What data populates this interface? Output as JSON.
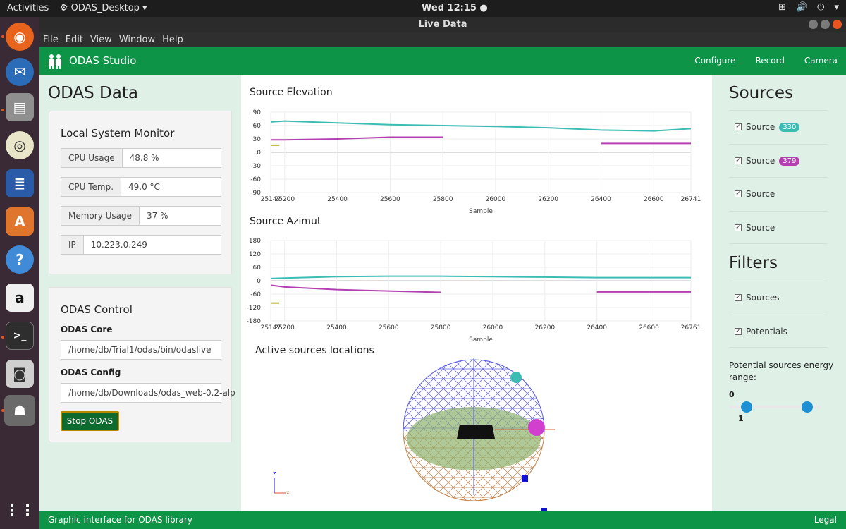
{
  "system": {
    "activities": "Activities",
    "app_name": "ODAS_Desktop",
    "clock": "Wed 12:15",
    "window_title": "Live Data",
    "menu": [
      "File",
      "Edit",
      "View",
      "Window",
      "Help"
    ]
  },
  "app": {
    "brand": "ODAS Studio",
    "nav": [
      "Configure",
      "Record",
      "Camera"
    ],
    "footer_left": "Graphic interface for ODAS library",
    "footer_right": "Legal",
    "accent": "#0e9447"
  },
  "left": {
    "title": "ODAS Data",
    "monitor_title": "Local System Monitor",
    "stats": [
      {
        "key": "CPU Usage",
        "value": "48.8 %"
      },
      {
        "key": "CPU Temp.",
        "value": "49.0 °C"
      },
      {
        "key": "Memory Usage",
        "value": "37 %"
      },
      {
        "key": "IP",
        "value": "10.223.0.249"
      }
    ],
    "control_title": "ODAS Control",
    "core_label": "ODAS Core",
    "core_value": "/home/db/Trial1/odas/bin/odaslive",
    "config_label": "ODAS Config",
    "config_value": "/home/db/Downloads/odas_web-0.2-alp",
    "stop_button": "Stop ODAS"
  },
  "center": {
    "locations_title": "Active sources locations"
  },
  "right": {
    "sources_title": "Sources",
    "sources": [
      {
        "label": "Source",
        "badge": "330",
        "badge_color": "#3bbdb4"
      },
      {
        "label": "Source",
        "badge": "379",
        "badge_color": "#b33fb3"
      },
      {
        "label": "Source",
        "badge": "",
        "badge_color": ""
      },
      {
        "label": "Source",
        "badge": "",
        "badge_color": ""
      }
    ],
    "filters_title": "Filters",
    "filters": [
      "Sources",
      "Potentials"
    ],
    "energy_label": "Potential sources energy range:",
    "range_min": "0",
    "range_max": "1",
    "slider_low": 0.15,
    "slider_high": 0.9
  },
  "chart_data": [
    {
      "type": "line",
      "title": "Source Elevation",
      "xlabel": "Sample",
      "xlim": [
        25147,
        26741
      ],
      "x_ticks": [
        "25147",
        "25200",
        "25400",
        "25600",
        "25800",
        "26000",
        "26200",
        "26400",
        "26600",
        "26741"
      ],
      "ylim": [
        -90,
        90
      ],
      "y_ticks": [
        "90",
        "60",
        "30",
        "0",
        "-30",
        "-60",
        "-90"
      ],
      "series": [
        {
          "name": "Source 330",
          "color": "#3bbdb4",
          "x": [
            25147,
            25200,
            25400,
            25600,
            25800,
            26000,
            26200,
            26400,
            26600,
            26741
          ],
          "y": [
            68,
            70,
            66,
            62,
            60,
            58,
            55,
            50,
            48,
            53
          ]
        },
        {
          "name": "Source 379",
          "color": "#b33fb3",
          "x": [
            25147,
            25200,
            25400,
            25600,
            25800
          ],
          "y": [
            28,
            28,
            30,
            34,
            34
          ]
        },
        {
          "name": "Source 379 (new)",
          "color": "#b33fb3",
          "x": [
            26400,
            26741
          ],
          "y": [
            20,
            20
          ]
        },
        {
          "name": "Potential",
          "color": "#b5b22e",
          "x": [
            25147,
            25180
          ],
          "y": [
            16,
            16
          ]
        }
      ]
    },
    {
      "type": "line",
      "title": "Source Azimut",
      "xlabel": "Sample",
      "xlim": [
        25147,
        26761
      ],
      "x_ticks": [
        "25147",
        "25200",
        "25400",
        "25600",
        "25800",
        "26000",
        "26200",
        "26400",
        "26600",
        "26761"
      ],
      "ylim": [
        -180,
        180
      ],
      "y_ticks": [
        "180",
        "120",
        "60",
        "0",
        "-60",
        "-120",
        "-180"
      ],
      "series": [
        {
          "name": "Source 330",
          "color": "#3bbdb4",
          "x": [
            25147,
            25200,
            25400,
            25600,
            25800,
            26000,
            26200,
            26400,
            26600,
            26761
          ],
          "y": [
            10,
            12,
            18,
            20,
            20,
            18,
            16,
            14,
            14,
            14
          ]
        },
        {
          "name": "Source 379",
          "color": "#b33fb3",
          "x": [
            25147,
            25200,
            25400,
            25600,
            25800
          ],
          "y": [
            -20,
            -28,
            -40,
            -46,
            -52
          ]
        },
        {
          "name": "Source 379 (new)",
          "color": "#b33fb3",
          "x": [
            26400,
            26761
          ],
          "y": [
            -50,
            -50
          ]
        },
        {
          "name": "Potential",
          "color": "#b5b22e",
          "x": [
            25147,
            25180
          ],
          "y": [
            -100,
            -100
          ]
        }
      ]
    }
  ]
}
